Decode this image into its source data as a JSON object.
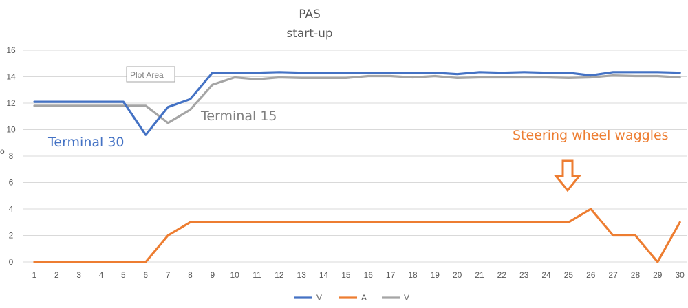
{
  "chart_data": {
    "type": "line",
    "title": [
      "PAS",
      "start-up"
    ],
    "categories": [
      1,
      2,
      3,
      4,
      5,
      6,
      7,
      8,
      9,
      10,
      11,
      12,
      13,
      14,
      15,
      16,
      17,
      18,
      19,
      20,
      21,
      22,
      23,
      24,
      25,
      26,
      27,
      28,
      29,
      30
    ],
    "ylim": [
      0,
      16
    ],
    "yticks": [
      0,
      2,
      4,
      6,
      8,
      10,
      12,
      14,
      16
    ],
    "ylabel": "",
    "xlabel": "",
    "grid": true,
    "legend_position": "bottom",
    "series": [
      {
        "name": "V",
        "color": "#4472c4",
        "values": [
          12.1,
          12.1,
          12.1,
          12.1,
          12.1,
          9.6,
          11.7,
          12.3,
          14.3,
          14.3,
          14.3,
          14.35,
          14.3,
          14.3,
          14.3,
          14.3,
          14.3,
          14.3,
          14.3,
          14.2,
          14.35,
          14.3,
          14.35,
          14.3,
          14.3,
          14.1,
          14.35,
          14.35,
          14.35,
          14.3
        ]
      },
      {
        "name": "A",
        "color": "#ed7d31",
        "values": [
          0,
          0,
          0,
          0,
          0,
          0,
          2,
          3,
          3,
          3,
          3,
          3,
          3,
          3,
          3,
          3,
          3,
          3,
          3,
          3,
          3,
          3,
          3,
          3,
          3,
          4,
          2,
          2,
          0,
          3
        ]
      },
      {
        "name": "V",
        "color": "#a5a5a5",
        "values": [
          11.8,
          11.8,
          11.8,
          11.8,
          11.8,
          11.8,
          10.5,
          11.5,
          13.4,
          13.95,
          13.8,
          13.95,
          13.9,
          13.9,
          13.9,
          14.05,
          14.05,
          13.95,
          14.05,
          13.9,
          13.95,
          13.95,
          13.95,
          13.95,
          13.9,
          13.95,
          14.1,
          14.05,
          14.05,
          13.95
        ]
      }
    ],
    "annotations": [
      {
        "text": "Terminal 30",
        "color": "#4472c4"
      },
      {
        "text": "Terminal 15",
        "color": "#7f7f7f"
      },
      {
        "text": "Steering wheel waggles",
        "color": "#ed7d31"
      }
    ],
    "plot_area_label": "Plot Area",
    "axis_fragment": "o"
  }
}
